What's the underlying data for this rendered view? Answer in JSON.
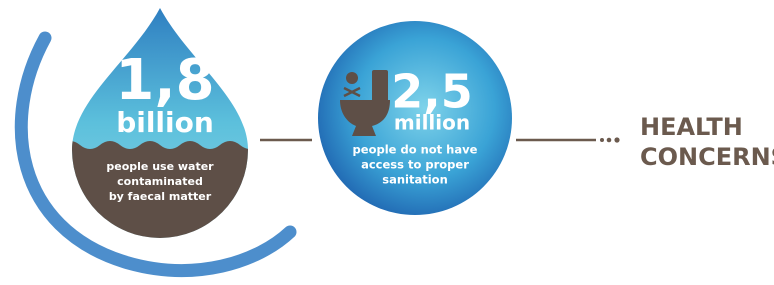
{
  "drop": {
    "number": "1,8",
    "unit": "billion",
    "caption": [
      "people use water",
      "contaminated",
      "by faecal matter"
    ]
  },
  "circle": {
    "number": "2,5",
    "unit": "million",
    "caption": [
      "people do not have",
      "access to proper",
      "sanitation"
    ]
  },
  "label": [
    "HEALTH",
    "CONCERNS"
  ]
}
